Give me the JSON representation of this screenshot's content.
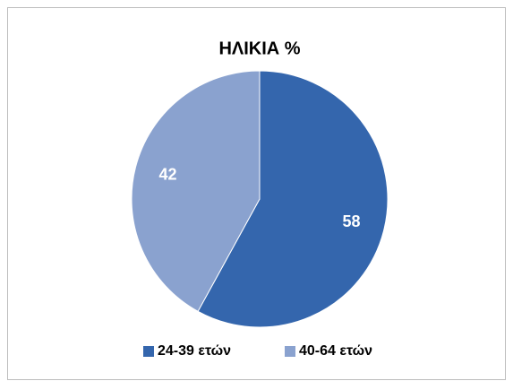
{
  "chart_data": {
    "type": "pie",
    "title": "ΗΛΙΚΙΑ %",
    "categories": [
      "24-39 ετών",
      "40-64 ετών"
    ],
    "values": [
      58,
      42
    ],
    "colors": [
      "#3466ad",
      "#8aa2cf"
    ],
    "legend": "bottom"
  }
}
